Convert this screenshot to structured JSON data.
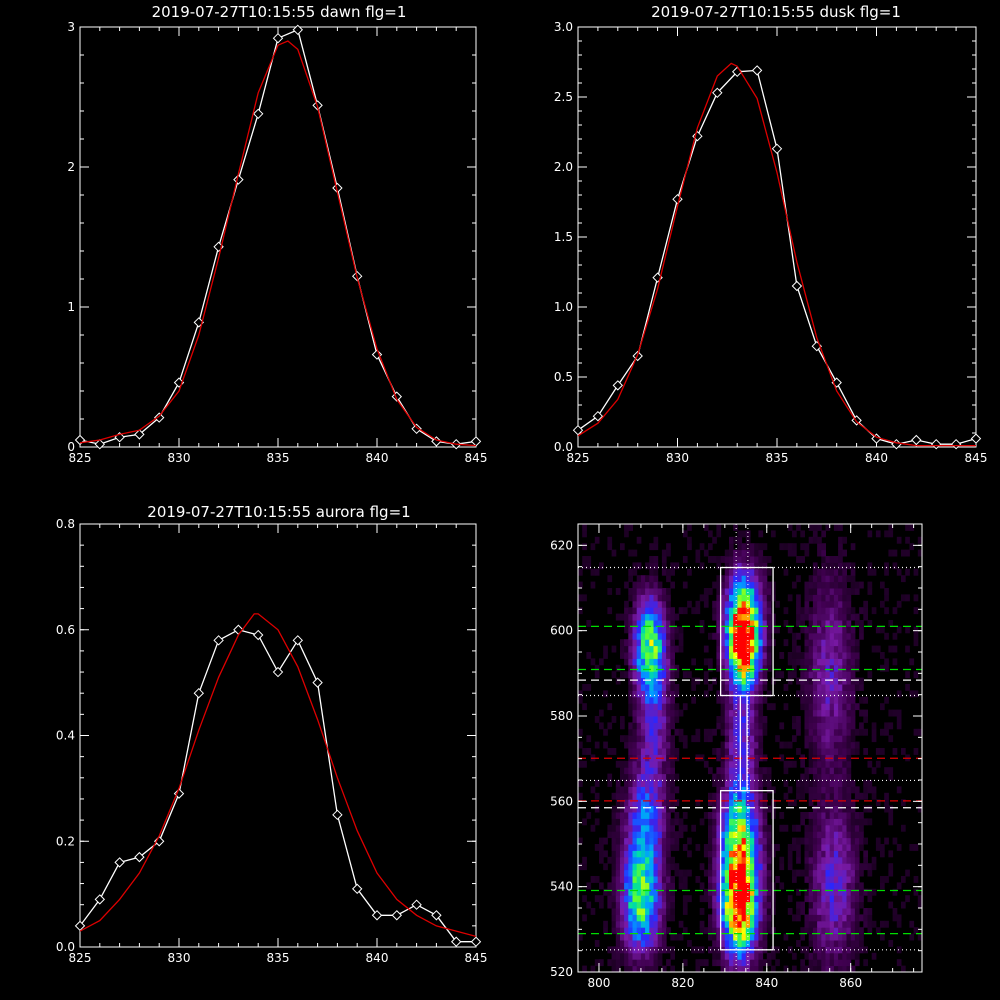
{
  "chart_data": [
    {
      "id": "dawn",
      "type": "line",
      "title": "2019-07-27T10:15:55 dawn flg=1",
      "xlim": [
        825,
        845
      ],
      "ylim": [
        0,
        3
      ],
      "xticks": [
        825,
        830,
        835,
        840,
        845
      ],
      "yticks": [
        0,
        1,
        2,
        3
      ],
      "ytick_labels": [
        "0",
        "1",
        "2",
        "3"
      ],
      "grid": false,
      "series": [
        {
          "kind": "data",
          "color": "#ffffff",
          "markers": "diamond",
          "x": [
            825,
            826,
            827,
            828,
            829,
            830,
            831,
            832,
            833,
            834,
            835,
            836,
            837,
            838,
            839,
            840,
            841,
            842,
            843,
            844,
            845
          ],
          "y": [
            0.05,
            0.02,
            0.07,
            0.09,
            0.21,
            0.46,
            0.89,
            1.43,
            1.91,
            2.38,
            2.92,
            2.98,
            2.44,
            1.85,
            1.22,
            0.66,
            0.36,
            0.13,
            0.04,
            0.02,
            0.04
          ]
        },
        {
          "kind": "fit",
          "color": "#dd0000",
          "x": [
            825,
            826,
            827,
            828,
            829,
            830,
            831,
            832,
            833,
            834,
            835,
            835.5,
            836,
            837,
            838,
            839,
            840,
            841,
            842,
            843,
            844,
            845
          ],
          "y": [
            0.03,
            0.05,
            0.09,
            0.12,
            0.22,
            0.4,
            0.8,
            1.35,
            1.95,
            2.53,
            2.87,
            2.9,
            2.84,
            2.43,
            1.82,
            1.21,
            0.7,
            0.34,
            0.14,
            0.05,
            0.02,
            0.01
          ]
        }
      ]
    },
    {
      "id": "dusk",
      "type": "line",
      "title": "2019-07-27T10:15:55 dusk flg=1",
      "xlim": [
        825,
        845
      ],
      "ylim": [
        0,
        3
      ],
      "xticks": [
        825,
        830,
        835,
        840,
        845
      ],
      "yticks": [
        0,
        0.5,
        1,
        1.5,
        2,
        2.5,
        3
      ],
      "ytick_labels": [
        "0.0",
        "0.5",
        "1.0",
        "1.5",
        "2.0",
        "2.5",
        "3.0"
      ],
      "grid": false,
      "series": [
        {
          "kind": "data",
          "color": "#ffffff",
          "markers": "diamond",
          "x": [
            825,
            826,
            827,
            828,
            829,
            830,
            831,
            832,
            833,
            834,
            835,
            836,
            837,
            838,
            839,
            840,
            841,
            842,
            843,
            844,
            845
          ],
          "y": [
            0.12,
            0.22,
            0.44,
            0.65,
            1.21,
            1.77,
            2.22,
            2.53,
            2.68,
            2.69,
            2.13,
            1.15,
            0.72,
            0.46,
            0.19,
            0.06,
            0.02,
            0.05,
            0.02,
            0.02,
            0.06
          ]
        },
        {
          "kind": "fit",
          "color": "#dd0000",
          "x": [
            825,
            826,
            827,
            828,
            829,
            830,
            831,
            832,
            832.7,
            833,
            834,
            835,
            836,
            837,
            838,
            839,
            840,
            841,
            842,
            843,
            844,
            845
          ],
          "y": [
            0.08,
            0.17,
            0.34,
            0.66,
            1.13,
            1.72,
            2.28,
            2.65,
            2.74,
            2.72,
            2.49,
            1.96,
            1.32,
            0.78,
            0.4,
            0.18,
            0.07,
            0.03,
            0.01,
            0.01,
            0.01,
            0.01
          ]
        }
      ]
    },
    {
      "id": "aurora",
      "type": "line",
      "title": "2019-07-27T10:15:55 aurora flg=1",
      "xlim": [
        825,
        845
      ],
      "ylim": [
        0,
        0.8
      ],
      "xticks": [
        825,
        830,
        835,
        840,
        845
      ],
      "yticks": [
        0,
        0.2,
        0.4,
        0.6,
        0.8
      ],
      "ytick_labels": [
        "0.0",
        "0.2",
        "0.4",
        "0.6",
        "0.8"
      ],
      "grid": false,
      "series": [
        {
          "kind": "data",
          "color": "#ffffff",
          "markers": "diamond",
          "x": [
            825,
            826,
            827,
            828,
            829,
            830,
            831,
            832,
            833,
            834,
            835,
            836,
            837,
            838,
            839,
            840,
            841,
            842,
            843,
            844,
            845
          ],
          "y": [
            0.04,
            0.09,
            0.16,
            0.17,
            0.2,
            0.29,
            0.48,
            0.58,
            0.6,
            0.59,
            0.52,
            0.58,
            0.5,
            0.25,
            0.11,
            0.06,
            0.06,
            0.08,
            0.06,
            0.01,
            0.01
          ]
        },
        {
          "kind": "fit",
          "color": "#dd0000",
          "x": [
            825,
            826,
            827,
            828,
            829,
            830,
            831,
            832,
            833,
            833.8,
            834,
            835,
            836,
            837,
            838,
            839,
            840,
            841,
            842,
            843,
            844,
            845
          ],
          "y": [
            0.03,
            0.05,
            0.09,
            0.14,
            0.21,
            0.3,
            0.41,
            0.51,
            0.59,
            0.63,
            0.63,
            0.6,
            0.53,
            0.43,
            0.32,
            0.22,
            0.14,
            0.09,
            0.06,
            0.04,
            0.03,
            0.02
          ]
        }
      ]
    },
    {
      "id": "spectrogram",
      "type": "heatmap",
      "title": "",
      "xlim": [
        795,
        877
      ],
      "ylim": [
        520,
        625
      ],
      "xticks": [
        800,
        820,
        840,
        860
      ],
      "yticks": [
        520,
        540,
        560,
        580,
        600,
        620
      ],
      "grid": false,
      "colormap": [
        "#000000",
        "#400050",
        "#7a1aa8",
        "#2828ff",
        "#00a0ff",
        "#00e0a0",
        "#60ff30",
        "#ffff00",
        "#ff8000",
        "#ff0000"
      ],
      "blobs": [
        {
          "x": 812,
          "y": 597,
          "sx": 2.5,
          "sy": 7,
          "amp": 0.55
        },
        {
          "x": 813,
          "y": 580,
          "sx": 2.5,
          "sy": 12,
          "amp": 0.25
        },
        {
          "x": 834.5,
          "y": 597,
          "sx": 2.4,
          "sy": 6,
          "amp": 1.0
        },
        {
          "x": 834.5,
          "y": 605,
          "sx": 2.8,
          "sy": 7,
          "amp": 0.5
        },
        {
          "x": 834,
          "y": 575,
          "sx": 2.5,
          "sy": 12,
          "amp": 0.25
        },
        {
          "x": 833.5,
          "y": 536,
          "sx": 2.8,
          "sy": 8,
          "amp": 1.0
        },
        {
          "x": 833.5,
          "y": 551,
          "sx": 3.0,
          "sy": 8,
          "amp": 0.6
        },
        {
          "x": 810,
          "y": 537,
          "sx": 3.0,
          "sy": 8,
          "amp": 0.6
        },
        {
          "x": 811,
          "y": 555,
          "sx": 3.0,
          "sy": 8,
          "amp": 0.35
        },
        {
          "x": 855,
          "y": 590,
          "sx": 3.5,
          "sy": 15,
          "amp": 0.2
        },
        {
          "x": 856,
          "y": 540,
          "sx": 3.5,
          "sy": 12,
          "amp": 0.25
        }
      ],
      "boxes": [
        {
          "x0": 829,
          "x1": 841.5,
          "y0": 584.8,
          "y1": 614.8,
          "color": "#ffffff"
        },
        {
          "x0": 829,
          "x1": 841.5,
          "y0": 525.2,
          "y1": 562.5,
          "color": "#ffffff"
        },
        {
          "x0": 833.7,
          "x1": 835.3,
          "y0": 562.5,
          "y1": 584.8,
          "color": "#ffffff"
        }
      ],
      "hlines": [
        {
          "y": 614.8,
          "color": "#ffffff",
          "style": "dotted"
        },
        {
          "y": 584.8,
          "color": "#ffffff",
          "style": "dotted"
        },
        {
          "y": 564.9,
          "color": "#ffffff",
          "style": "dotted"
        },
        {
          "y": 525.2,
          "color": "#ffffff",
          "style": "dotted"
        },
        {
          "y": 601.0,
          "color": "#00dd00",
          "style": "dashed"
        },
        {
          "y": 590.9,
          "color": "#00dd00",
          "style": "dashed"
        },
        {
          "y": 539.1,
          "color": "#00dd00",
          "style": "dashed"
        },
        {
          "y": 529.0,
          "color": "#00dd00",
          "style": "dashed"
        },
        {
          "y": 588.4,
          "color": "#ffffff",
          "style": "dashed"
        },
        {
          "y": 558.5,
          "color": "#ffffff",
          "style": "dashed"
        },
        {
          "y": 570.1,
          "color": "#dd0000",
          "style": "dashed"
        },
        {
          "y": 560.1,
          "color": "#dd0000",
          "style": "dashed"
        }
      ],
      "vlines": [
        {
          "x": 832.7,
          "color": "#ffffff",
          "style": "dotted"
        },
        {
          "x": 835.5,
          "color": "#ffffff",
          "style": "dotted"
        }
      ]
    }
  ]
}
